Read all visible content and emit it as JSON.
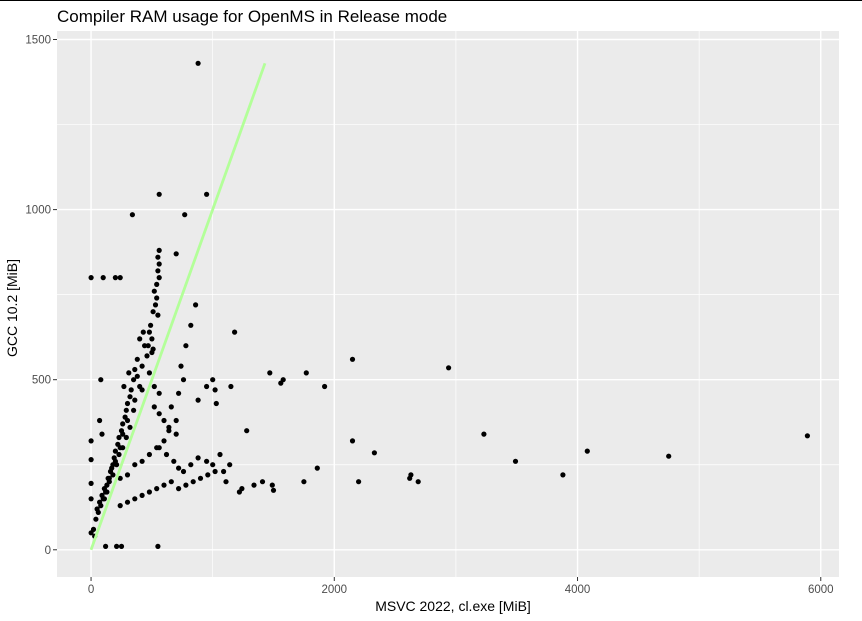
{
  "chart_data": {
    "type": "scatter",
    "title": "Compiler RAM usage for OpenMS in Release mode",
    "xlabel": "MSVC 2022, cl.exe [MiB]",
    "ylabel": "GCC 10.2 [MiB]",
    "xlim": [
      -280,
      6150
    ],
    "ylim": [
      -80,
      1525
    ],
    "x_ticks": [
      0,
      2000,
      4000,
      6000
    ],
    "y_ticks": [
      0,
      500,
      1000,
      1500
    ],
    "x_tick_labels": [
      "0",
      "2000",
      "4000",
      "6000"
    ],
    "y_tick_labels": [
      "0",
      "500",
      "1000",
      "1500"
    ],
    "grid": true,
    "panel_color": "#ebebeb",
    "grid_color": "#ffffff",
    "point_color": "#000000",
    "reference_line": {
      "x": [
        0,
        1430
      ],
      "y": [
        0,
        1430
      ],
      "color": "#b3ff99"
    },
    "points": [
      [
        0,
        320
      ],
      [
        0,
        265
      ],
      [
        0,
        195
      ],
      [
        0,
        150
      ],
      [
        0,
        50
      ],
      [
        0,
        800
      ],
      [
        100,
        800
      ],
      [
        200,
        800
      ],
      [
        240,
        800
      ],
      [
        80,
        500
      ],
      [
        70,
        380
      ],
      [
        90,
        340
      ],
      [
        120,
        10
      ],
      [
        210,
        10
      ],
      [
        250,
        10
      ],
      [
        550,
        10
      ],
      [
        880,
        1430
      ],
      [
        340,
        985
      ],
      [
        560,
        1045
      ],
      [
        770,
        985
      ],
      [
        950,
        1045
      ],
      [
        560,
        880
      ],
      [
        700,
        870
      ],
      [
        550,
        860
      ],
      [
        560,
        840
      ],
      [
        550,
        820
      ],
      [
        560,
        800
      ],
      [
        540,
        780
      ],
      [
        520,
        760
      ],
      [
        540,
        740
      ],
      [
        530,
        720
      ],
      [
        510,
        700
      ],
      [
        550,
        690
      ],
      [
        490,
        660
      ],
      [
        480,
        640
      ],
      [
        500,
        620
      ],
      [
        470,
        600
      ],
      [
        500,
        580
      ],
      [
        430,
        640
      ],
      [
        400,
        620
      ],
      [
        380,
        560
      ],
      [
        360,
        530
      ],
      [
        350,
        500
      ],
      [
        330,
        470
      ],
      [
        320,
        450
      ],
      [
        300,
        430
      ],
      [
        290,
        410
      ],
      [
        280,
        390
      ],
      [
        260,
        370
      ],
      [
        250,
        350
      ],
      [
        230,
        330
      ],
      [
        220,
        310
      ],
      [
        200,
        290
      ],
      [
        190,
        270
      ],
      [
        180,
        250
      ],
      [
        160,
        230
      ],
      [
        150,
        210
      ],
      [
        130,
        190
      ],
      [
        120,
        170
      ],
      [
        100,
        150
      ],
      [
        80,
        130
      ],
      [
        60,
        110
      ],
      [
        40,
        90
      ],
      [
        20,
        60
      ],
      [
        30,
        40
      ],
      [
        310,
        520
      ],
      [
        420,
        540
      ],
      [
        460,
        570
      ],
      [
        510,
        590
      ],
      [
        440,
        600
      ],
      [
        480,
        520
      ],
      [
        520,
        480
      ],
      [
        560,
        460
      ],
      [
        400,
        480
      ],
      [
        360,
        440
      ],
      [
        300,
        380
      ],
      [
        260,
        340
      ],
      [
        240,
        300
      ],
      [
        200,
        260
      ],
      [
        170,
        240
      ],
      [
        140,
        210
      ],
      [
        110,
        180
      ],
      [
        90,
        160
      ],
      [
        70,
        140
      ],
      [
        50,
        120
      ],
      [
        270,
        480
      ],
      [
        380,
        510
      ],
      [
        420,
        470
      ],
      [
        350,
        410
      ],
      [
        320,
        360
      ],
      [
        290,
        330
      ],
      [
        260,
        300
      ],
      [
        230,
        280
      ],
      [
        210,
        250
      ],
      [
        180,
        220
      ],
      [
        150,
        200
      ],
      [
        130,
        170
      ],
      [
        110,
        150
      ],
      [
        240,
        210
      ],
      [
        300,
        220
      ],
      [
        360,
        250
      ],
      [
        420,
        260
      ],
      [
        480,
        280
      ],
      [
        540,
        300
      ],
      [
        600,
        320
      ],
      [
        640,
        350
      ],
      [
        700,
        380
      ],
      [
        660,
        420
      ],
      [
        720,
        460
      ],
      [
        760,
        500
      ],
      [
        740,
        540
      ],
      [
        780,
        600
      ],
      [
        820,
        660
      ],
      [
        860,
        720
      ],
      [
        240,
        130
      ],
      [
        300,
        140
      ],
      [
        360,
        150
      ],
      [
        420,
        160
      ],
      [
        480,
        170
      ],
      [
        540,
        180
      ],
      [
        600,
        190
      ],
      [
        660,
        200
      ],
      [
        720,
        180
      ],
      [
        780,
        190
      ],
      [
        840,
        200
      ],
      [
        900,
        210
      ],
      [
        960,
        220
      ],
      [
        1020,
        230
      ],
      [
        520,
        420
      ],
      [
        560,
        400
      ],
      [
        600,
        380
      ],
      [
        640,
        360
      ],
      [
        700,
        340
      ],
      [
        560,
        300
      ],
      [
        620,
        280
      ],
      [
        680,
        260
      ],
      [
        720,
        240
      ],
      [
        760,
        230
      ],
      [
        820,
        250
      ],
      [
        880,
        270
      ],
      [
        950,
        260
      ],
      [
        1000,
        250
      ],
      [
        1060,
        280
      ],
      [
        1090,
        230
      ],
      [
        1110,
        200
      ],
      [
        1140,
        250
      ],
      [
        880,
        440
      ],
      [
        950,
        480
      ],
      [
        1000,
        500
      ],
      [
        1020,
        470
      ],
      [
        1030,
        430
      ],
      [
        1180,
        640
      ],
      [
        1150,
        480
      ],
      [
        1280,
        350
      ],
      [
        1410,
        200
      ],
      [
        1470,
        520
      ],
      [
        1490,
        190
      ],
      [
        1500,
        175
      ],
      [
        1560,
        490
      ],
      [
        1580,
        500
      ],
      [
        1220,
        170
      ],
      [
        1240,
        180
      ],
      [
        1340,
        190
      ],
      [
        1750,
        200
      ],
      [
        1770,
        520
      ],
      [
        1860,
        240
      ],
      [
        1920,
        480
      ],
      [
        2150,
        560
      ],
      [
        2150,
        320
      ],
      [
        2200,
        200
      ],
      [
        2330,
        285
      ],
      [
        2620,
        210
      ],
      [
        2630,
        220
      ],
      [
        2690,
        200
      ],
      [
        2940,
        535
      ],
      [
        3230,
        340
      ],
      [
        3490,
        260
      ],
      [
        3880,
        220
      ],
      [
        4080,
        290
      ],
      [
        4750,
        275
      ],
      [
        5890,
        335
      ]
    ]
  }
}
